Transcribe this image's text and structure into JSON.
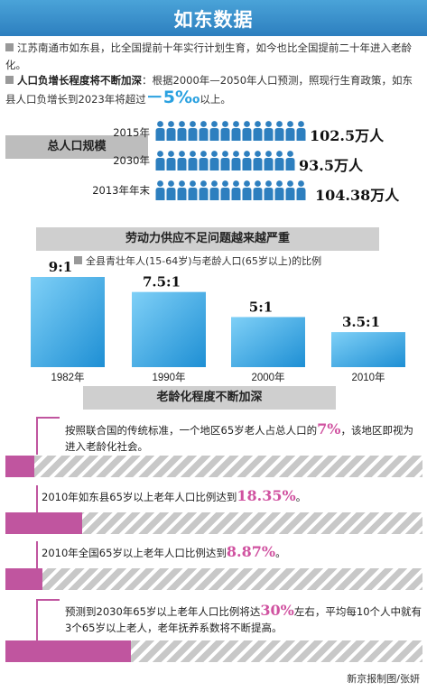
{
  "title": "如东数据",
  "intro": {
    "line1": "江苏南通市如东县，比全国提前十年实行计划生育，如今也比全国提前二十年进入老龄化。",
    "line2_bold": "人口负增长程度将不断加深",
    "line2_rest": "：根据2000年—2050年人口预测，照现行生育政策，如东县人口负增长到2023年将超过",
    "line2_value": "－5‰",
    "line2_tail": "以上。"
  },
  "population": {
    "label": "总人口规模",
    "rows": [
      {
        "year": "2015年",
        "value": "102.5万人",
        "people": 14
      },
      {
        "year": "2030年",
        "value": "93.5万人",
        "people": 13
      },
      {
        "year": "2013年年末",
        "value": "104.38万人",
        "people": 14
      }
    ]
  },
  "labor": {
    "heading": "劳动力供应不足问题越来越严重",
    "subtitle": "全县青壮年人(15-64岁)与老龄人口(65岁以上)的比例",
    "chart_data": {
      "type": "bar",
      "title": "全县青壮年人(15-64岁)与老龄人口(65岁以上)的比例",
      "categories": [
        "1982年",
        "1990年",
        "2000年",
        "2010年"
      ],
      "values": [
        9,
        7.5,
        5,
        3.5
      ],
      "data_labels": [
        "9:1",
        "7.5:1",
        "5:1",
        "3.5:1"
      ],
      "ylim": [
        0,
        9
      ],
      "color": "#2fa8e6"
    }
  },
  "aging": {
    "heading": "老龄化程度不断加深",
    "items": [
      {
        "pre": "按照联合国的传统标准，一个地区65岁老人占总人口的",
        "value": "7%",
        "post": "，该地区即视为进入老龄化社会。",
        "percent": 7
      },
      {
        "pre": "2010年如东县65岁以上老年人口比例达到",
        "value": "18.35%",
        "post": "。",
        "percent": 18.35
      },
      {
        "pre": "2010年全国65岁以上老年人口比例达到",
        "value": "8.87%",
        "post": "。",
        "percent": 8.87
      },
      {
        "pre": "预测到2030年65岁以上老年人口比例将达",
        "value": "30%",
        "post": "左右，平均每10个人中就有3个65岁以上老人，老年抚养系数将不断提高。",
        "percent": 30
      }
    ],
    "fill_color": "#c0559f"
  },
  "credit": "新京报制图/张妍"
}
